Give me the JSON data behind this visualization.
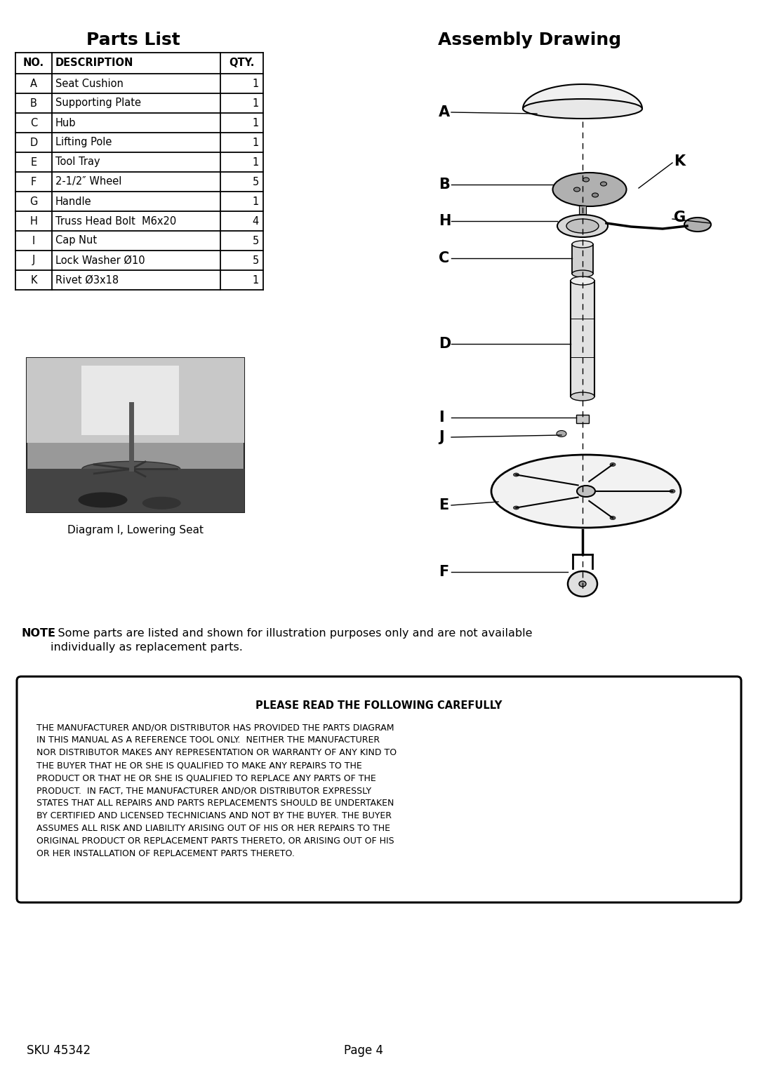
{
  "title_left": "Parts List",
  "title_right": "Assembly Drawing",
  "table_headers": [
    "NO.",
    "DESCRIPTION",
    "QTY."
  ],
  "table_rows": [
    [
      "A",
      "Seat Cushion",
      "1"
    ],
    [
      "B",
      "Supporting Plate",
      "1"
    ],
    [
      "C",
      "Hub",
      "1"
    ],
    [
      "D",
      "Lifting Pole",
      "1"
    ],
    [
      "E",
      "Tool Tray",
      "1"
    ],
    [
      "F",
      "2-1/2″ Wheel",
      "5"
    ],
    [
      "G",
      "Handle",
      "1"
    ],
    [
      "H",
      "Truss Head Bolt  M6x20",
      "4"
    ],
    [
      "I",
      "Cap Nut",
      "5"
    ],
    [
      "J",
      "Lock Washer Ø10",
      "5"
    ],
    [
      "K",
      "Rivet Ø3x18",
      "1"
    ]
  ],
  "diagram_caption": "Diagram I, Lowering Seat",
  "note_bold": "NOTE",
  "note_text": ": Some parts are listed and shown for illustration purposes only and are not available\nindividually as replacement parts.",
  "warning_title": "PLEASE READ THE FOLLOWING CAREFULLY",
  "warning_body": "THE MANUFACTURER AND/OR DISTRIBUTOR HAS PROVIDED THE PARTS DIAGRAM\nIN THIS MANUAL AS A REFERENCE TOOL ONLY.  NEITHER THE MANUFACTURER\nNOR DISTRIBUTOR MAKES ANY REPRESENTATION OR WARRANTY OF ANY KIND TO\nTHE BUYER THAT HE OR SHE IS QUALIFIED TO MAKE ANY REPAIRS TO THE\nPRODUCT OR THAT HE OR SHE IS QUALIFIED TO REPLACE ANY PARTS OF THE\nPRODUCT.  IN FACT, THE MANUFACTURER AND/OR DISTRIBUTOR EXPRESSLY\nSTATES THAT ALL REPAIRS AND PARTS REPLACEMENTS SHOULD BE UNDERTAKEN\nBY CERTIFIED AND LICENSED TECHNICIANS AND NOT BY THE BUYER. THE BUYER\nASSUMES ALL RISK AND LIABILITY ARISING OUT OF HIS OR HER REPAIRS TO THE\nORIGINAL PRODUCT OR REPLACEMENT PARTS THERETO, OR ARISING OUT OF HIS\nOR HER INSTALLATION OF REPLACEMENT PARTS THERETO.",
  "sku": "SKU 45342",
  "page": "Page 4",
  "bg_color": "#ffffff"
}
